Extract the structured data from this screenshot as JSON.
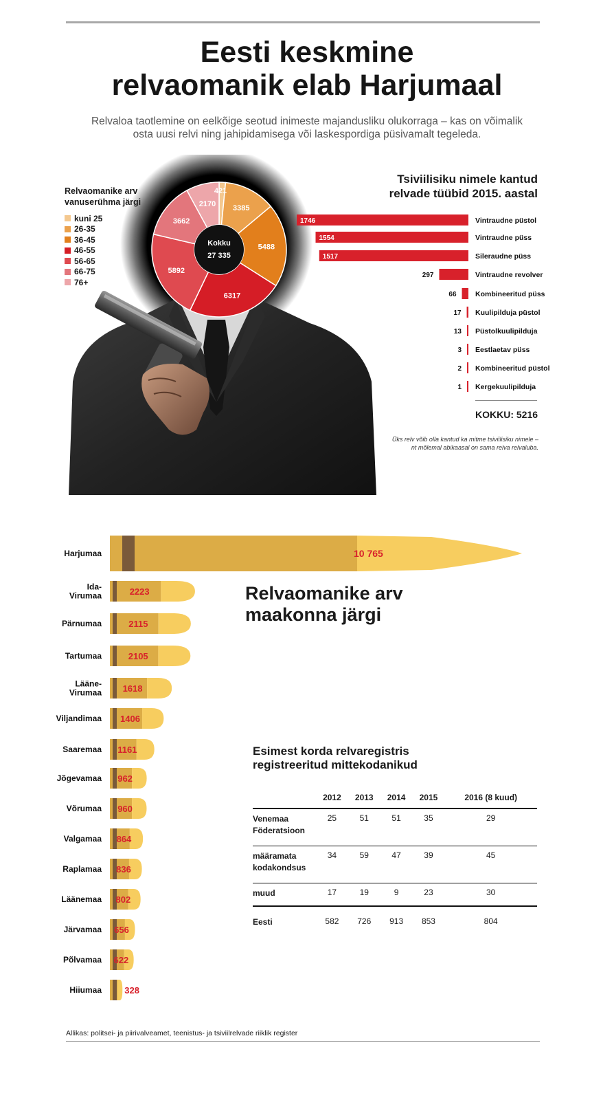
{
  "header": {
    "title_line1": "Eesti keskmine",
    "title_line2": "relvaomanik elab Harjumaal",
    "subtitle_line1": "Relvaloa taotlemine on eelkõige seotud inimeste majandusliku olukorraga – kas on võimalik",
    "subtitle_line2": "osta uusi relvi ning jahipidamisega või laskespordiga püsivamalt tegeleda."
  },
  "colors": {
    "bullet_casing": "#dcac46",
    "bullet_tip": "#f7cd5f",
    "bullet_value": "#d8212b",
    "weapon_bar": "#d8212b"
  },
  "chart_data": [
    {
      "type": "pie",
      "title": "Relvaomanike arv vanuserühma järgi",
      "title_line1": "Relvaomanike arv",
      "title_line2": "vanuserühma järgi",
      "center_label": "Kokku",
      "center_value": "27 335",
      "slices": [
        {
          "label": "kuni 25",
          "value": 421,
          "color": "#f4c88f"
        },
        {
          "label": "26-35",
          "value": 3385,
          "color": "#eba14c"
        },
        {
          "label": "36-45",
          "value": 5488,
          "color": "#e27f1c"
        },
        {
          "label": "46-55",
          "value": 6317,
          "color": "#d51d26"
        },
        {
          "label": "56-65",
          "value": 5892,
          "color": "#df4a50"
        },
        {
          "label": "66-75",
          "value": 3662,
          "color": "#e3767c"
        },
        {
          "label": "76+",
          "value": 2170,
          "color": "#eda6aa"
        }
      ]
    },
    {
      "type": "bar",
      "title": "Tsiviilisiku nimele kantud relvade tüübid 2015. aastal",
      "title_line1": "Tsiviilisiku nimele kantud",
      "title_line2": "relvade tüübid 2015. aastal",
      "categories": [
        "Vintraudne püstol",
        "Vintraudne püss",
        "Sileraudne püss",
        "Vintraudne revolver",
        "Kombineeritud püss",
        "Kuulipilduja püstol",
        "Püstolkuulipilduja",
        "Eestlaetav püss",
        "Kombineeritud püstol",
        "Kergekuulipilduja"
      ],
      "values": [
        1746,
        1554,
        1517,
        297,
        66,
        17,
        13,
        3,
        2,
        1
      ],
      "total_label": "KOKKU: 5216",
      "note_line1": "Üks relv võib olla kantud ka mitme tsiviilisiku nimele –",
      "note_line2": "nt mõlemal abikaasal on sama relva relvaluba."
    },
    {
      "type": "bar",
      "title": "Relvaomanike arv maakonna järgi",
      "title_line1": "Relvaomanike arv",
      "title_line2": "maakonna järgi",
      "categories": [
        "Harjumaa",
        "Ida-Virumaa",
        "Pärnumaa",
        "Tartumaa",
        "Lääne-Virumaa",
        "Viljandimaa",
        "Saaremaa",
        "Jõgevamaa",
        "Võrumaa",
        "Valgamaa",
        "Raplamaa",
        "Läänemaa",
        "Järvamaa",
        "Põlvamaa",
        "Hiiumaa"
      ],
      "category_lines": [
        [
          "Harjumaa"
        ],
        [
          "Ida-",
          "Virumaa"
        ],
        [
          "Pärnumaa"
        ],
        [
          "Tartumaa"
        ],
        [
          "Lääne-",
          "Virumaa"
        ],
        [
          "Viljandimaa"
        ],
        [
          "Saaremaa"
        ],
        [
          "Jõgevamaa"
        ],
        [
          "Võrumaa"
        ],
        [
          "Valgamaa"
        ],
        [
          "Raplamaa"
        ],
        [
          "Läänemaa"
        ],
        [
          "Järvamaa"
        ],
        [
          "Põlvamaa"
        ],
        [
          "Hiiumaa"
        ]
      ],
      "values": [
        10765,
        2223,
        2115,
        2105,
        1618,
        1406,
        1161,
        962,
        960,
        864,
        836,
        802,
        656,
        622,
        328
      ],
      "value_labels": [
        "10 765",
        "2223",
        "2115",
        "2105",
        "1618",
        "1406",
        "1161",
        "962",
        "960",
        "864",
        "836",
        "802",
        "656",
        "622",
        "328"
      ]
    },
    {
      "type": "table",
      "title": "Esimest korda relvaregistris registreeritud mittekodanikud",
      "title_line1": "Esimest korda relvaregistris",
      "title_line2": "registreeritud mittekodanikud",
      "columns": [
        "",
        "2012",
        "2013",
        "2014",
        "2015",
        "2016 (8 kuud)"
      ],
      "rows": [
        {
          "label_line1": "Venemaa",
          "label_line2": "Föderatsioon",
          "values": [
            "25",
            "51",
            "51",
            "35",
            "29"
          ]
        },
        {
          "label_line1": "määramata",
          "label_line2": "kodakondsus",
          "values": [
            "34",
            "59",
            "47",
            "39",
            "45"
          ]
        },
        {
          "label_line1": "muud",
          "label_line2": "",
          "values": [
            "17",
            "19",
            "9",
            "23",
            "30"
          ]
        },
        {
          "label_line1": "Eesti",
          "label_line2": "",
          "values": [
            "582",
            "726",
            "913",
            "853",
            "804"
          ]
        }
      ]
    }
  ],
  "footer": {
    "source": "Allikas: politsei- ja piirivalveamet, teenistus- ja tsiviilrelvade riiklik register"
  }
}
